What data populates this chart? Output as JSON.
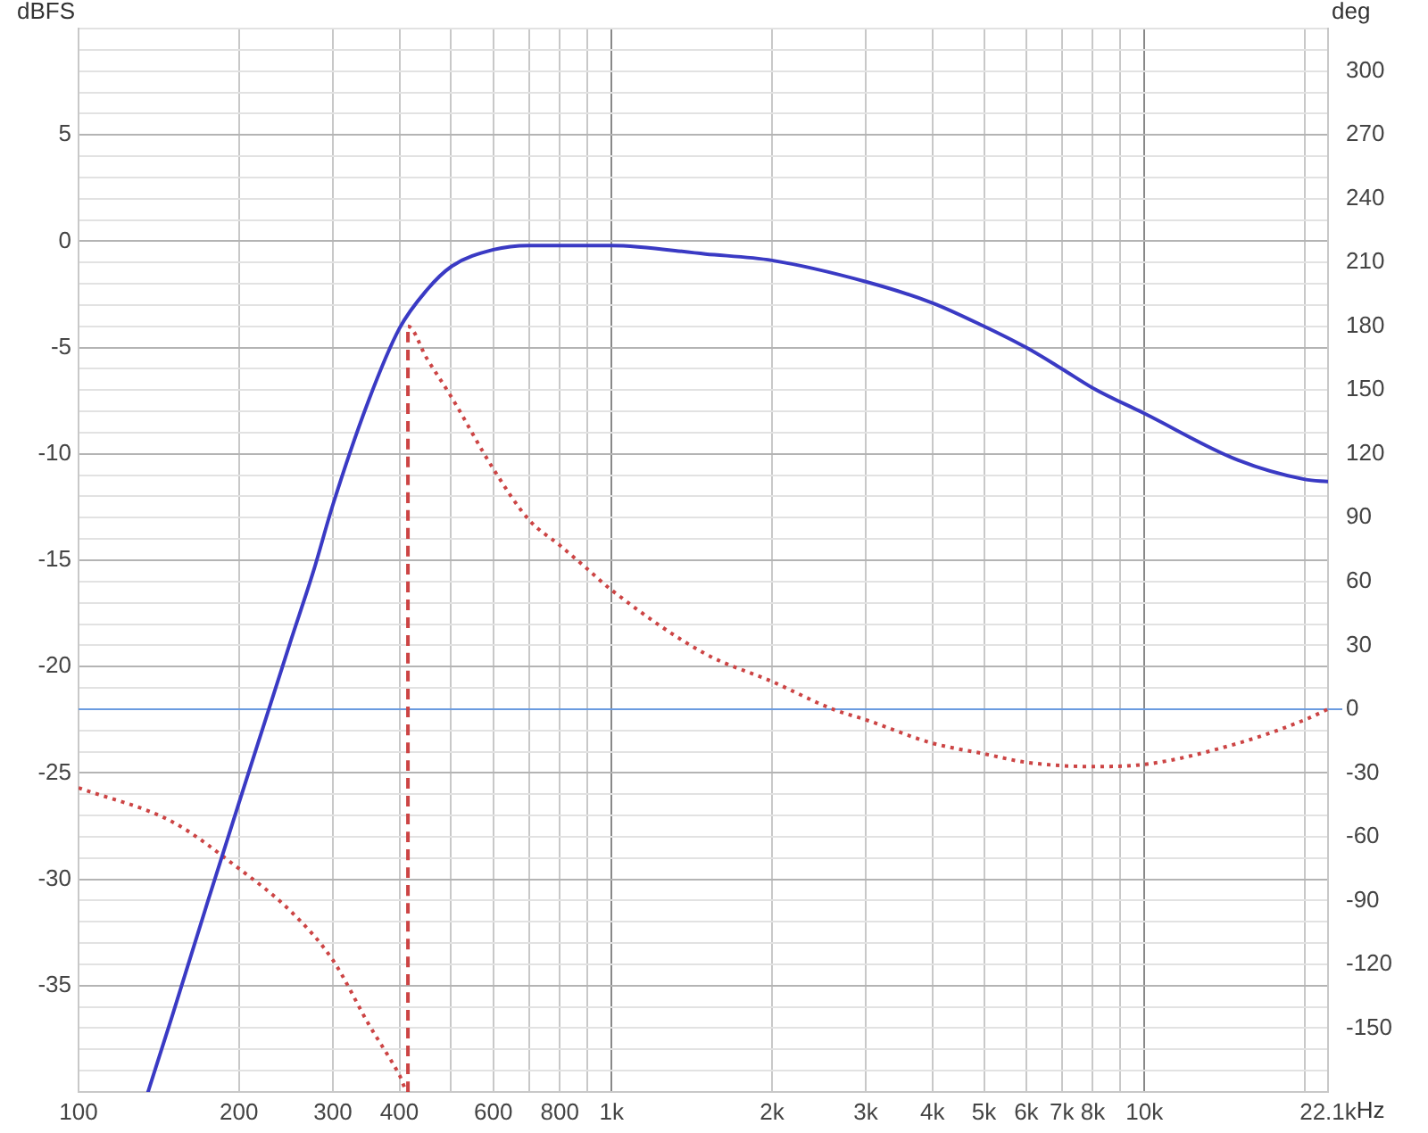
{
  "chart_data": {
    "type": "line",
    "ylabel": "dBFS",
    "y2label": "deg",
    "log": "x",
    "grid": true,
    "legend": false,
    "marker": "none",
    "xlim": [
      100,
      22100
    ],
    "xticks": [
      {
        "value": 100,
        "label": "100"
      },
      {
        "value": 200,
        "label": "200"
      },
      {
        "value": 300,
        "label": "300"
      },
      {
        "value": 400,
        "label": "400"
      },
      {
        "value": 500,
        "label": null
      },
      {
        "value": 600,
        "label": "600"
      },
      {
        "value": 700,
        "label": null
      },
      {
        "value": 800,
        "label": "800"
      },
      {
        "value": 900,
        "label": null
      },
      {
        "value": 1000,
        "label": "1k"
      },
      {
        "value": 2000,
        "label": "2k"
      },
      {
        "value": 3000,
        "label": "3k"
      },
      {
        "value": 4000,
        "label": "4k"
      },
      {
        "value": 5000,
        "label": "5k"
      },
      {
        "value": 6000,
        "label": "6k"
      },
      {
        "value": 7000,
        "label": "7k"
      },
      {
        "value": 8000,
        "label": "8k"
      },
      {
        "value": 9000,
        "label": null
      },
      {
        "value": 10000,
        "label": "10k"
      },
      {
        "value": 20000,
        "label": null
      },
      {
        "value": 22100,
        "label": "22.1k"
      }
    ],
    "xlabel": "Hz",
    "ylim": [
      -40,
      10
    ],
    "yticks": [
      {
        "value": -40,
        "label": null
      },
      {
        "value": -39,
        "label": null
      },
      {
        "value": -38,
        "label": null
      },
      {
        "value": -37,
        "label": null
      },
      {
        "value": -36,
        "label": null
      },
      -35,
      {
        "value": -34,
        "label": null
      },
      {
        "value": -33,
        "label": null
      },
      {
        "value": -32,
        "label": null
      },
      {
        "value": -31,
        "label": null
      },
      -30,
      {
        "value": -29,
        "label": null
      },
      {
        "value": -28,
        "label": null
      },
      {
        "value": -27,
        "label": null
      },
      {
        "value": -26,
        "label": null
      },
      -25,
      {
        "value": -24,
        "label": null
      },
      {
        "value": -23,
        "label": null
      },
      {
        "value": -22,
        "label": null
      },
      {
        "value": -21,
        "label": null
      },
      -20,
      {
        "value": -19,
        "label": null
      },
      {
        "value": -18,
        "label": null
      },
      {
        "value": -17,
        "label": null
      },
      {
        "value": -16,
        "label": null
      },
      -15,
      {
        "value": -14,
        "label": null
      },
      {
        "value": -13,
        "label": null
      },
      {
        "value": -12,
        "label": null
      },
      {
        "value": -11,
        "label": null
      },
      -10,
      {
        "value": -9,
        "label": null
      },
      {
        "value": -8,
        "label": null
      },
      {
        "value": -7,
        "label": null
      },
      {
        "value": -6,
        "label": null
      },
      -5,
      {
        "value": -4,
        "label": null
      },
      {
        "value": -3,
        "label": null
      },
      {
        "value": -2,
        "label": null
      },
      {
        "value": -1,
        "label": null
      },
      0,
      {
        "value": 1,
        "label": null
      },
      {
        "value": 2,
        "label": null
      },
      {
        "value": 3,
        "label": null
      },
      {
        "value": 4,
        "label": null
      },
      5,
      {
        "value": 6,
        "label": null
      },
      {
        "value": 7,
        "label": null
      },
      {
        "value": 8,
        "label": null
      },
      {
        "value": 9,
        "label": null
      },
      {
        "value": 10,
        "label": null
      }
    ],
    "y2lim": [
      -180,
      320
    ],
    "y2ticks": [
      -150,
      -120,
      -90,
      -60,
      -30,
      0,
      30,
      60,
      90,
      120,
      150,
      180,
      210,
      240,
      270,
      300
    ],
    "ref_lines": [
      {
        "axis": "y2",
        "value": 0,
        "color": "#6a9be0"
      }
    ],
    "series": [
      {
        "color": "#3a3ac4",
        "line_style": "solid",
        "x": [
          135,
          150,
          175,
          200,
          250,
          276,
          300,
          350,
          400,
          450,
          500,
          600,
          700,
          800,
          1000,
          1500,
          2000,
          3000,
          4000,
          5000,
          6000,
          7000,
          8000,
          10000,
          15000,
          20000,
          22100
        ],
        "values": [
          -40,
          -36.4,
          -31,
          -26.4,
          -18.8,
          -15.5,
          -12.4,
          -7.5,
          -4.1,
          -2.3,
          -1.2,
          -0.4,
          -0.2,
          -0.2,
          -0.2,
          -0.6,
          -0.9,
          -1.9,
          -2.9,
          -4,
          -5,
          -6,
          -6.9,
          -8.1,
          -10.3,
          -11.2,
          -11.3
        ]
      },
      {
        "color": "#cc4444",
        "line_style": "dotted",
        "axis": "y2",
        "x": [
          100,
          150,
          200,
          250,
          300,
          350,
          400,
          415,
          415,
          450,
          500,
          600,
          700,
          800,
          900,
          1000,
          1500,
          2000,
          2600,
          3000,
          4000,
          5000,
          6000,
          8000,
          10000,
          15000,
          20000,
          22100
        ],
        "values": [
          -37,
          -53,
          -75,
          -95,
          -118,
          -148,
          -172,
          -180,
          180,
          165,
          147,
          113,
          89,
          77,
          66,
          56,
          26,
          13,
          0,
          -5,
          -16,
          -21,
          -25,
          -27,
          -26,
          -16,
          -5,
          0
        ]
      }
    ]
  }
}
